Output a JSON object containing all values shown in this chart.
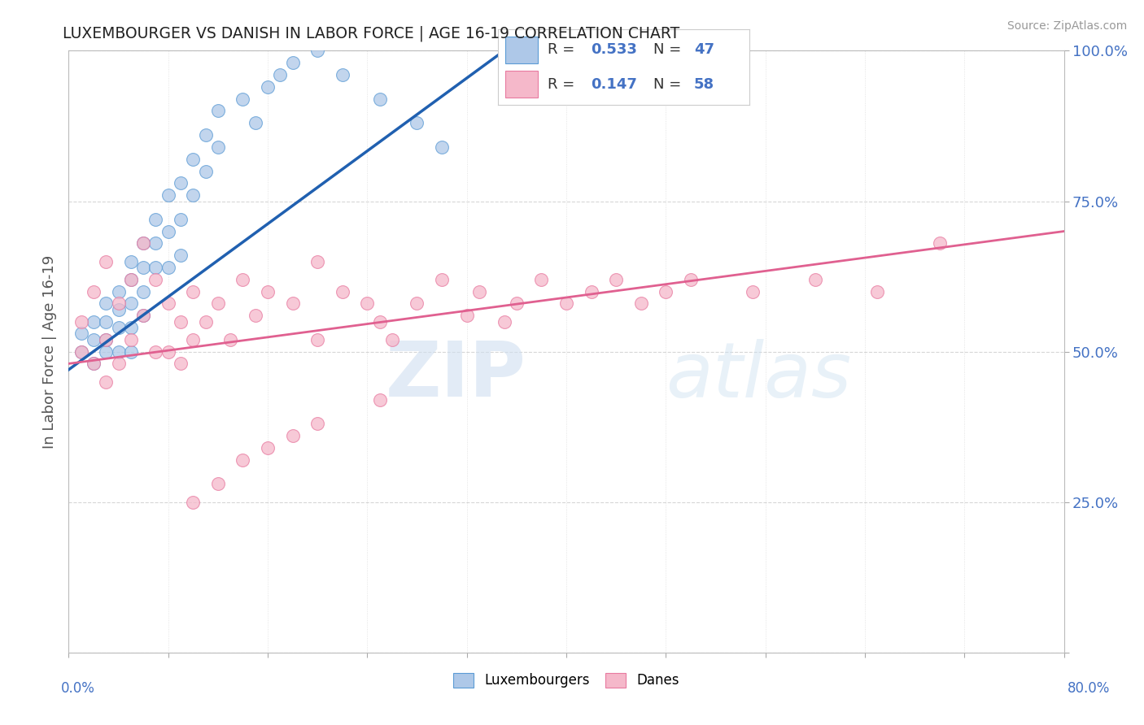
{
  "title": "LUXEMBOURGER VS DANISH IN LABOR FORCE | AGE 16-19 CORRELATION CHART",
  "source_text": "Source: ZipAtlas.com",
  "ylabel": "In Labor Force | Age 16-19",
  "xlim": [
    0.0,
    80.0
  ],
  "ylim": [
    0.0,
    100.0
  ],
  "yticks": [
    0,
    25,
    50,
    75,
    100
  ],
  "ytick_labels": [
    "",
    "25.0%",
    "50.0%",
    "75.0%",
    "100.0%"
  ],
  "legend_r1": "R = 0.533",
  "legend_n1": "N = 47",
  "legend_r2": "R = 0.147",
  "legend_n2": "N = 58",
  "color_blue_fill": "#aec8e8",
  "color_blue_edge": "#5b9bd5",
  "color_pink_fill": "#f5b8ca",
  "color_pink_edge": "#e87aa0",
  "color_blue_line": "#2060b0",
  "color_pink_line": "#e06090",
  "watermark_zip": "ZIP",
  "watermark_atlas": "atlas",
  "blue_x": [
    1,
    1,
    2,
    2,
    2,
    3,
    3,
    3,
    3,
    4,
    4,
    4,
    4,
    5,
    5,
    5,
    5,
    5,
    6,
    6,
    6,
    6,
    7,
    7,
    7,
    8,
    8,
    8,
    9,
    9,
    9,
    10,
    10,
    11,
    11,
    12,
    12,
    14,
    15,
    16,
    17,
    18,
    20,
    22,
    25,
    28,
    30
  ],
  "blue_y": [
    53,
    50,
    55,
    52,
    48,
    58,
    55,
    52,
    50,
    60,
    57,
    54,
    50,
    65,
    62,
    58,
    54,
    50,
    68,
    64,
    60,
    56,
    72,
    68,
    64,
    76,
    70,
    64,
    78,
    72,
    66,
    82,
    76,
    86,
    80,
    90,
    84,
    92,
    88,
    94,
    96,
    98,
    100,
    96,
    92,
    88,
    84
  ],
  "pink_x": [
    1,
    1,
    2,
    2,
    3,
    3,
    3,
    4,
    4,
    5,
    5,
    6,
    6,
    7,
    7,
    8,
    8,
    9,
    9,
    10,
    10,
    11,
    12,
    13,
    14,
    15,
    16,
    18,
    20,
    20,
    22,
    24,
    25,
    26,
    28,
    30,
    32,
    33,
    35,
    36,
    38,
    40,
    42,
    44,
    46,
    48,
    50,
    55,
    60,
    65,
    70,
    25,
    20,
    18,
    16,
    14,
    12,
    10
  ],
  "pink_y": [
    55,
    50,
    60,
    48,
    65,
    52,
    45,
    58,
    48,
    62,
    52,
    68,
    56,
    62,
    50,
    58,
    50,
    55,
    48,
    52,
    60,
    55,
    58,
    52,
    62,
    56,
    60,
    58,
    65,
    52,
    60,
    58,
    55,
    52,
    58,
    62,
    56,
    60,
    55,
    58,
    62,
    58,
    60,
    62,
    58,
    60,
    62,
    60,
    62,
    60,
    68,
    42,
    38,
    36,
    34,
    32,
    28,
    25
  ],
  "blue_line_x": [
    0,
    35
  ],
  "blue_line_y": [
    47,
    100
  ],
  "pink_line_x": [
    0,
    80
  ],
  "pink_line_y": [
    48,
    70
  ]
}
